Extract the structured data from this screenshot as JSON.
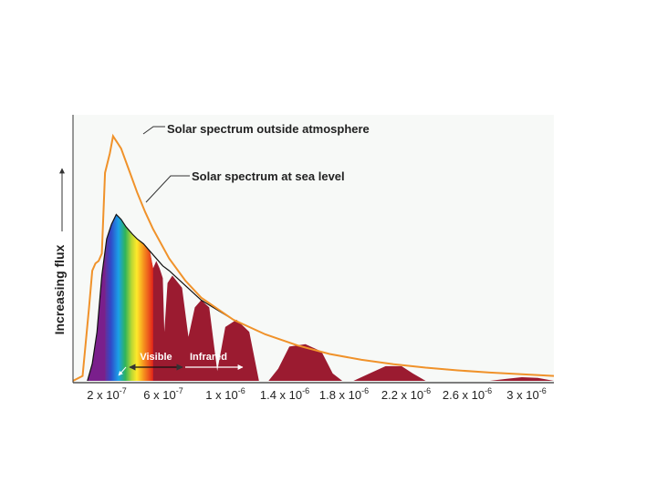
{
  "chart_data": {
    "type": "area",
    "xlabel": "",
    "ylabel": "Increasing flux",
    "x_ticks": [
      {
        "base": "2 x 10",
        "exp": "-7",
        "value": 2e-07
      },
      {
        "base": "6 x 10",
        "exp": "-7",
        "value": 6e-07
      },
      {
        "base": "1 x 10",
        "exp": "-6",
        "value": 1e-06
      },
      {
        "base": "1.4 x 10",
        "exp": "-6",
        "value": 1.4e-06
      },
      {
        "base": "1.8 x 10",
        "exp": "-6",
        "value": 1.8e-06
      },
      {
        "base": "2.2 x 10",
        "exp": "-6",
        "value": 2.2e-06
      },
      {
        "base": "2.6 x 10",
        "exp": "-6",
        "value": 2.6e-06
      },
      {
        "base": "3 x 10",
        "exp": "-6",
        "value": 3e-06
      }
    ],
    "xlim": [
      2e-07,
      3.2e-06
    ],
    "ylim": [
      0,
      1.05
    ],
    "annotations": {
      "outside": "Solar spectrum outside atmosphere",
      "sea_level": "Solar spectrum at sea level",
      "visible": "Visible",
      "infrared": "Infrared"
    },
    "series": [
      {
        "key": "outside",
        "x": [
          2e-07,
          2.6e-07,
          3e-07,
          3.2e-07,
          3.4e-07,
          3.6e-07,
          3.8e-07,
          4e-07,
          4.3e-07,
          4.5e-07,
          4.8e-07,
          5e-07,
          5.5e-07,
          6e-07,
          6.5e-07,
          7e-07,
          8e-07,
          9e-07,
          1e-06,
          1.2e-06,
          1.4e-06,
          1.6e-06,
          1.8e-06,
          2e-06,
          2.2e-06,
          2.4e-06,
          2.6e-06,
          2.8e-06,
          3e-06,
          3.2e-06
        ],
        "y": [
          0.0,
          0.02,
          0.3,
          0.45,
          0.48,
          0.49,
          0.52,
          0.85,
          0.93,
          1.0,
          0.97,
          0.95,
          0.86,
          0.77,
          0.69,
          0.62,
          0.5,
          0.41,
          0.34,
          0.25,
          0.19,
          0.145,
          0.11,
          0.086,
          0.068,
          0.054,
          0.043,
          0.034,
          0.027,
          0.02
        ]
      },
      {
        "key": "sea_level",
        "x": [
          2.9e-07,
          3.2e-07,
          3.5e-07,
          3.8e-07,
          4.1e-07,
          4.4e-07,
          4.7e-07,
          5e-07,
          5.3e-07,
          5.7e-07,
          6e-07,
          6.4e-07,
          6.8e-07,
          7.2e-07,
          7.6e-07,
          8e-07,
          9e-07,
          1e-06,
          1.2e-06,
          1.4e-06,
          1.6e-06,
          1.8e-06,
          2e-06,
          2.2e-06,
          2.4e-06,
          2.6e-06,
          2.8e-06,
          3e-06,
          3.2e-06
        ],
        "y": [
          0.0,
          0.07,
          0.2,
          0.43,
          0.58,
          0.64,
          0.68,
          0.66,
          0.63,
          0.6,
          0.58,
          0.56,
          0.53,
          0.5,
          0.47,
          0.45,
          0.39,
          0.33,
          0.25,
          0.19,
          0.145,
          0.11,
          0.086,
          0.068,
          0.054,
          0.043,
          0.034,
          0.027,
          0.02
        ]
      },
      {
        "key": "absorbed_sea_level",
        "x": [
          2.9e-07,
          3.2e-07,
          3.5e-07,
          3.8e-07,
          4.1e-07,
          4.4e-07,
          4.7e-07,
          5e-07,
          5.3e-07,
          5.7e-07,
          6e-07,
          6.4e-07,
          6.8e-07,
          7e-07,
          7.2e-07,
          7.4e-07,
          7.6e-07,
          7.7e-07,
          7.9e-07,
          8.2e-07,
          8.8e-07,
          9.2e-07,
          9.6e-07,
          1e-06,
          1.05e-06,
          1.1e-06,
          1.15e-06,
          1.22e-06,
          1.3e-06,
          1.36e-06,
          1.42e-06,
          1.48e-06,
          1.55e-06,
          1.65e-06,
          1.75e-06,
          1.82e-06,
          1.88e-06,
          1.95e-06,
          2.05e-06,
          2.15e-06,
          2.25e-06,
          2.32e-06,
          2.4e-06,
          2.6e-06,
          2.8e-06,
          2.9e-06,
          3e-06,
          3.1e-06,
          3.2e-06
        ],
        "y": [
          0.0,
          0.07,
          0.2,
          0.43,
          0.58,
          0.64,
          0.68,
          0.66,
          0.63,
          0.6,
          0.58,
          0.56,
          0.53,
          0.46,
          0.49,
          0.46,
          0.42,
          0.2,
          0.4,
          0.43,
          0.38,
          0.18,
          0.3,
          0.33,
          0.3,
          0.04,
          0.22,
          0.25,
          0.2,
          0.0,
          0.0,
          0.05,
          0.14,
          0.15,
          0.12,
          0.03,
          0.0,
          0.0,
          0.03,
          0.06,
          0.06,
          0.03,
          0.0,
          0.0,
          0.0,
          0.008,
          0.015,
          0.012,
          0.0
        ]
      }
    ],
    "colors": {
      "outside_line": "#f0922a",
      "sea_level_line": "#111111",
      "absorption_fill": "#9b1b30",
      "axis": "#333333",
      "plot_background": "#f7f9f7",
      "uv_fill": "#7a1f8c"
    },
    "visible_band": [
      4e-07,
      7e-07
    ],
    "grid": false,
    "legend": "none"
  }
}
